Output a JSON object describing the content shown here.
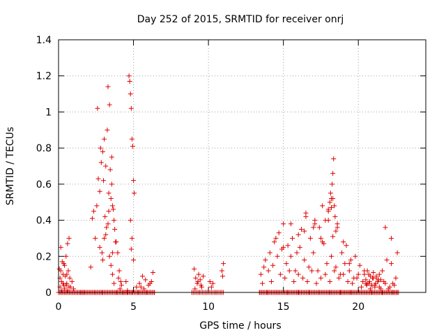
{
  "chart_data": {
    "type": "scatter",
    "title": "Day 252 of 2015, SRMTID for receiver onrj",
    "xlabel": "GPS time / hours",
    "ylabel": "SRMTID / TECUs",
    "xlim": [
      0,
      24.5
    ],
    "ylim": [
      0,
      1.4
    ],
    "xticks": [
      0,
      5,
      10,
      15,
      20
    ],
    "xtick_labels": [
      "0",
      "5",
      "10",
      "15",
      "20"
    ],
    "yticks": [
      0,
      0.2,
      0.4,
      0.6,
      0.8,
      1,
      1.2,
      1.4
    ],
    "ytick_labels": [
      "0",
      "0.2",
      "0.4",
      "0.6",
      "0.8",
      "1",
      "1.2",
      "1.4"
    ],
    "grid": true,
    "marker": "+",
    "series": [
      {
        "name": "SRMTID",
        "color": "#e00000",
        "x": [
          0.05,
          0.1,
          0.15,
          0.2,
          0.25,
          0.3,
          0.35,
          0.4,
          0.45,
          0.5,
          0.55,
          0.6,
          0.65,
          0.7,
          0.75,
          0.8,
          0.9,
          1.0,
          0.1,
          0.2,
          0.3,
          0.4,
          0.5,
          0.6,
          0.7,
          0.15,
          0.35,
          0.55,
          2.15,
          2.25,
          2.35,
          2.45,
          2.55,
          2.65,
          2.75,
          2.85,
          2.95,
          3.05,
          3.15,
          3.25,
          3.35,
          3.45,
          3.55,
          3.65,
          3.75,
          3.85,
          3.95,
          4.05,
          4.15,
          2.6,
          2.8,
          2.9,
          3.0,
          3.1,
          3.2,
          3.3,
          3.4,
          3.5,
          3.6,
          3.7,
          3.8,
          3.3,
          3.35,
          3.4,
          3.5,
          3.55,
          3.6,
          3.7,
          2.75,
          2.95,
          3.05,
          3.15,
          3.6,
          4.7,
          4.75,
          4.8,
          4.85,
          4.9,
          4.95,
          5.0,
          5.05,
          4.8,
          4.9,
          4.85,
          5.0,
          4.0,
          4.2,
          4.5,
          5.2,
          5.4,
          5.6,
          5.8,
          6.0,
          6.2,
          6.3,
          4.1,
          4.6,
          5.5,
          5.7,
          6.1,
          9.05,
          9.15,
          9.25,
          9.35,
          9.45,
          9.55,
          9.65,
          9.1,
          9.3,
          9.5,
          10.1,
          10.2,
          10.3,
          10.9,
          11.0,
          10.95,
          13.5,
          13.8,
          14.1,
          14.4,
          14.7,
          15.0,
          15.3,
          15.6,
          15.9,
          16.2,
          16.5,
          16.8,
          17.1,
          17.4,
          17.7,
          18.0,
          18.3,
          18.6,
          18.9,
          19.2,
          19.5,
          19.8,
          20.1,
          20.4,
          20.7,
          21.0,
          21.3,
          21.6,
          21.9,
          22.2,
          22.5,
          13.6,
          14.0,
          14.3,
          14.6,
          14.9,
          15.2,
          15.5,
          15.8,
          16.1,
          16.4,
          16.7,
          17.0,
          17.3,
          17.6,
          17.9,
          18.2,
          18.5,
          18.8,
          19.1,
          19.4,
          19.7,
          20.0,
          20.3,
          20.6,
          20.9,
          21.2,
          21.5,
          21.8,
          22.1,
          22.4,
          13.7,
          14.2,
          14.8,
          15.1,
          15.4,
          15.7,
          16.0,
          16.3,
          16.6,
          16.9,
          17.2,
          17.5,
          17.8,
          18.1,
          18.4,
          18.7,
          19.0,
          19.3,
          19.6,
          19.9,
          20.2,
          20.5,
          20.8,
          21.1,
          21.4,
          21.7,
          22.0,
          22.3,
          14.5,
          15.0,
          15.5,
          16.0,
          16.5,
          17.0,
          17.5,
          18.0,
          18.5,
          19.0,
          18.0,
          18.1,
          18.2,
          18.25,
          18.3,
          18.35,
          18.4,
          18.15,
          18.45,
          17.8,
          18.6,
          18.2,
          18.3,
          16.4,
          17.1,
          17.6,
          19.4,
          21.8,
          22.2,
          22.6,
          20.4,
          20.5,
          20.6,
          20.7,
          20.8,
          20.9,
          21.0,
          21.1,
          21.2,
          21.3,
          21.4,
          21.5,
          20.55,
          20.75,
          20.95,
          21.15,
          21.35,
          1.5,
          1.7,
          2.0,
          2.4,
          2.9,
          3.9,
          4.3,
          4.6,
          4.9,
          5.3,
          5.9,
          6.4,
          8.9,
          9.4,
          9.9,
          10.5,
          10.9,
          13.4,
          13.9,
          14.6,
          15.3,
          16.0,
          16.7,
          17.4,
          18.1,
          18.8,
          19.5,
          20.2,
          20.9,
          21.6,
          22.3,
          22.6
        ],
        "y": [
          0.13,
          0.08,
          0.12,
          0.06,
          0.17,
          0.1,
          0.04,
          0.15,
          0.09,
          0.2,
          0.05,
          0.27,
          0.12,
          0.3,
          0.08,
          0.03,
          0.06,
          0.02,
          0.03,
          0.01,
          0.05,
          0.02,
          0.04,
          0.01,
          0.03,
          0.25,
          0.16,
          0.1,
          0.14,
          0.41,
          0.45,
          0.3,
          0.48,
          0.63,
          0.56,
          0.72,
          0.78,
          0.85,
          0.7,
          0.9,
          0.55,
          0.68,
          0.6,
          0.46,
          0.35,
          0.28,
          0.22,
          0.12,
          0.06,
          1.02,
          0.8,
          0.22,
          0.62,
          0.42,
          0.36,
          1.14,
          1.04,
          0.52,
          0.48,
          0.4,
          0.28,
          0.38,
          0.45,
          0.2,
          0.15,
          0.75,
          0.1,
          0.05,
          0.25,
          0.18,
          0.3,
          0.32,
          0.22,
          1.2,
          1.17,
          1.1,
          1.02,
          0.85,
          0.81,
          0.62,
          0.55,
          0.4,
          0.3,
          0.24,
          0.18,
          0.08,
          0.04,
          0.06,
          0.03,
          0.05,
          0.09,
          0.07,
          0.04,
          0.06,
          0.11,
          0.02,
          0.01,
          0.03,
          0.02,
          0.05,
          0.13,
          0.08,
          0.05,
          0.1,
          0.07,
          0.03,
          0.09,
          0.02,
          0.06,
          0.04,
          0.06,
          0.03,
          0.05,
          0.12,
          0.16,
          0.09,
          0.1,
          0.18,
          0.22,
          0.28,
          0.33,
          0.38,
          0.26,
          0.3,
          0.22,
          0.35,
          0.44,
          0.3,
          0.4,
          0.36,
          0.27,
          0.46,
          0.31,
          0.38,
          0.22,
          0.26,
          0.18,
          0.2,
          0.15,
          0.12,
          0.1,
          0.08,
          0.06,
          0.12,
          0.18,
          0.16,
          0.08,
          0.05,
          0.12,
          0.15,
          0.2,
          0.24,
          0.16,
          0.2,
          0.12,
          0.25,
          0.18,
          0.14,
          0.22,
          0.12,
          0.28,
          0.16,
          0.2,
          0.14,
          0.1,
          0.16,
          0.12,
          0.08,
          0.1,
          0.06,
          0.05,
          0.04,
          0.09,
          0.07,
          0.05,
          0.03,
          0.04,
          0.14,
          0.06,
          0.1,
          0.08,
          0.12,
          0.06,
          0.1,
          0.08,
          0.06,
          0.12,
          0.05,
          0.08,
          0.1,
          0.06,
          0.12,
          0.08,
          0.1,
          0.06,
          0.05,
          0.08,
          0.03,
          0.05,
          0.02,
          0.04,
          0.03,
          0.06,
          0.02,
          0.05,
          0.3,
          0.25,
          0.38,
          0.32,
          0.42,
          0.36,
          0.3,
          0.4,
          0.34,
          0.28,
          0.45,
          0.5,
          0.52,
          0.6,
          0.66,
          0.74,
          0.48,
          0.55,
          0.42,
          0.4,
          0.36,
          0.47,
          0.52,
          0.34,
          0.38,
          0.48,
          0.16,
          0.36,
          0.3,
          0.22,
          0.1,
          0.07,
          0.12,
          0.05,
          0.09,
          0.04,
          0.11,
          0.03,
          0.08,
          0.06,
          0.1,
          0.02,
          0.04,
          0.06,
          0.08,
          0.05,
          0.07,
          0,
          0,
          0,
          0,
          0,
          0,
          0,
          0,
          0,
          0,
          0,
          0,
          0,
          0,
          0,
          0,
          0,
          0,
          0,
          0,
          0,
          0,
          0,
          0,
          0,
          0,
          0,
          0,
          0,
          0,
          0,
          0
        ]
      }
    ]
  }
}
